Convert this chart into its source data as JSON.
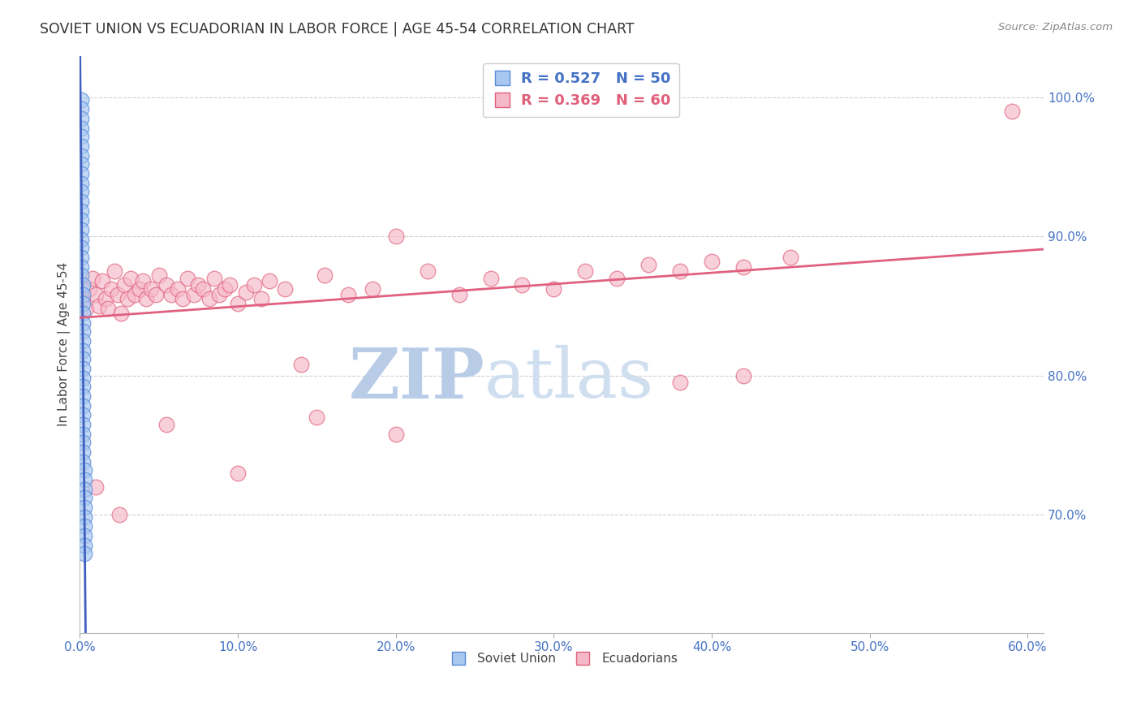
{
  "title": "SOVIET UNION VS ECUADORIAN IN LABOR FORCE | AGE 45-54 CORRELATION CHART",
  "source_text": "Source: ZipAtlas.com",
  "ylabel": "In Labor Force | Age 45-54",
  "xlim": [
    0.0,
    0.61
  ],
  "ylim": [
    0.615,
    1.03
  ],
  "xticks": [
    0.0,
    0.1,
    0.2,
    0.3,
    0.4,
    0.5,
    0.6
  ],
  "xtick_labels": [
    "0.0%",
    "10.0%",
    "20.0%",
    "30.0%",
    "40.0%",
    "50.0%",
    "60.0%"
  ],
  "yticks": [
    0.7,
    0.8,
    0.9,
    1.0
  ],
  "ytick_labels": [
    "70.0%",
    "80.0%",
    "90.0%",
    "100.0%"
  ],
  "soviet_R": 0.527,
  "soviet_N": 50,
  "ecuadorian_R": 0.369,
  "ecuadorian_N": 60,
  "soviet_color": "#a8c8f0",
  "soviet_edge_color": "#5b8dd9",
  "ecuadorian_color": "#f5b8c8",
  "ecuadorian_edge_color": "#e0607a",
  "soviet_line_color": "#4060c0",
  "ecuadorian_line_color": "#e06080",
  "background_color": "#ffffff",
  "grid_color": "#cccccc",
  "tick_label_color": "#4472c4",
  "title_color": "#333333",
  "watermark_zip_color": "#b8cce8",
  "watermark_atlas_color": "#d0dff0",
  "soviet_x": [
    0.001,
    0.001,
    0.001,
    0.001,
    0.001,
    0.001,
    0.001,
    0.001,
    0.001,
    0.001,
    0.001,
    0.001,
    0.001,
    0.001,
    0.001,
    0.001,
    0.001,
    0.001,
    0.001,
    0.001,
    0.002,
    0.002,
    0.002,
    0.002,
    0.002,
    0.002,
    0.002,
    0.002,
    0.002,
    0.002,
    0.002,
    0.002,
    0.002,
    0.002,
    0.002,
    0.002,
    0.002,
    0.002,
    0.002,
    0.002,
    0.003,
    0.003,
    0.003,
    0.003,
    0.003,
    0.003,
    0.003,
    0.003,
    0.003,
    0.003
  ],
  "soviet_y": [
    0.998,
    0.992,
    0.985,
    0.978,
    0.972,
    0.965,
    0.958,
    0.952,
    0.945,
    0.938,
    0.932,
    0.925,
    0.918,
    0.912,
    0.905,
    0.898,
    0.892,
    0.885,
    0.878,
    0.872,
    0.865,
    0.858,
    0.852,
    0.845,
    0.838,
    0.832,
    0.825,
    0.818,
    0.812,
    0.805,
    0.798,
    0.792,
    0.785,
    0.778,
    0.772,
    0.765,
    0.758,
    0.752,
    0.745,
    0.738,
    0.732,
    0.725,
    0.718,
    0.712,
    0.705,
    0.698,
    0.692,
    0.685,
    0.678,
    0.672
  ],
  "ecuadorian_x": [
    0.002,
    0.004,
    0.006,
    0.008,
    0.01,
    0.012,
    0.014,
    0.016,
    0.018,
    0.02,
    0.022,
    0.024,
    0.026,
    0.028,
    0.03,
    0.032,
    0.035,
    0.038,
    0.04,
    0.042,
    0.045,
    0.048,
    0.05,
    0.055,
    0.058,
    0.062,
    0.065,
    0.068,
    0.072,
    0.075,
    0.078,
    0.082,
    0.085,
    0.088,
    0.092,
    0.095,
    0.1,
    0.105,
    0.11,
    0.115,
    0.12,
    0.13,
    0.14,
    0.155,
    0.17,
    0.185,
    0.2,
    0.22,
    0.24,
    0.26,
    0.28,
    0.3,
    0.32,
    0.34,
    0.36,
    0.38,
    0.4,
    0.42,
    0.45,
    0.59
  ],
  "ecuadorian_y": [
    0.855,
    0.848,
    0.862,
    0.87,
    0.858,
    0.85,
    0.868,
    0.855,
    0.848,
    0.862,
    0.875,
    0.858,
    0.845,
    0.865,
    0.855,
    0.87,
    0.858,
    0.862,
    0.868,
    0.855,
    0.862,
    0.858,
    0.872,
    0.865,
    0.858,
    0.862,
    0.855,
    0.87,
    0.858,
    0.865,
    0.862,
    0.855,
    0.87,
    0.858,
    0.862,
    0.865,
    0.852,
    0.86,
    0.865,
    0.855,
    0.868,
    0.862,
    0.808,
    0.872,
    0.858,
    0.862,
    0.9,
    0.875,
    0.858,
    0.87,
    0.865,
    0.862,
    0.875,
    0.87,
    0.88,
    0.875,
    0.882,
    0.878,
    0.885,
    0.99
  ],
  "ecu_outliers_x": [
    0.01,
    0.025,
    0.055,
    0.1,
    0.15,
    0.2,
    0.38,
    0.42
  ],
  "ecu_outliers_y": [
    0.72,
    0.7,
    0.765,
    0.73,
    0.77,
    0.758,
    0.795,
    0.8
  ]
}
